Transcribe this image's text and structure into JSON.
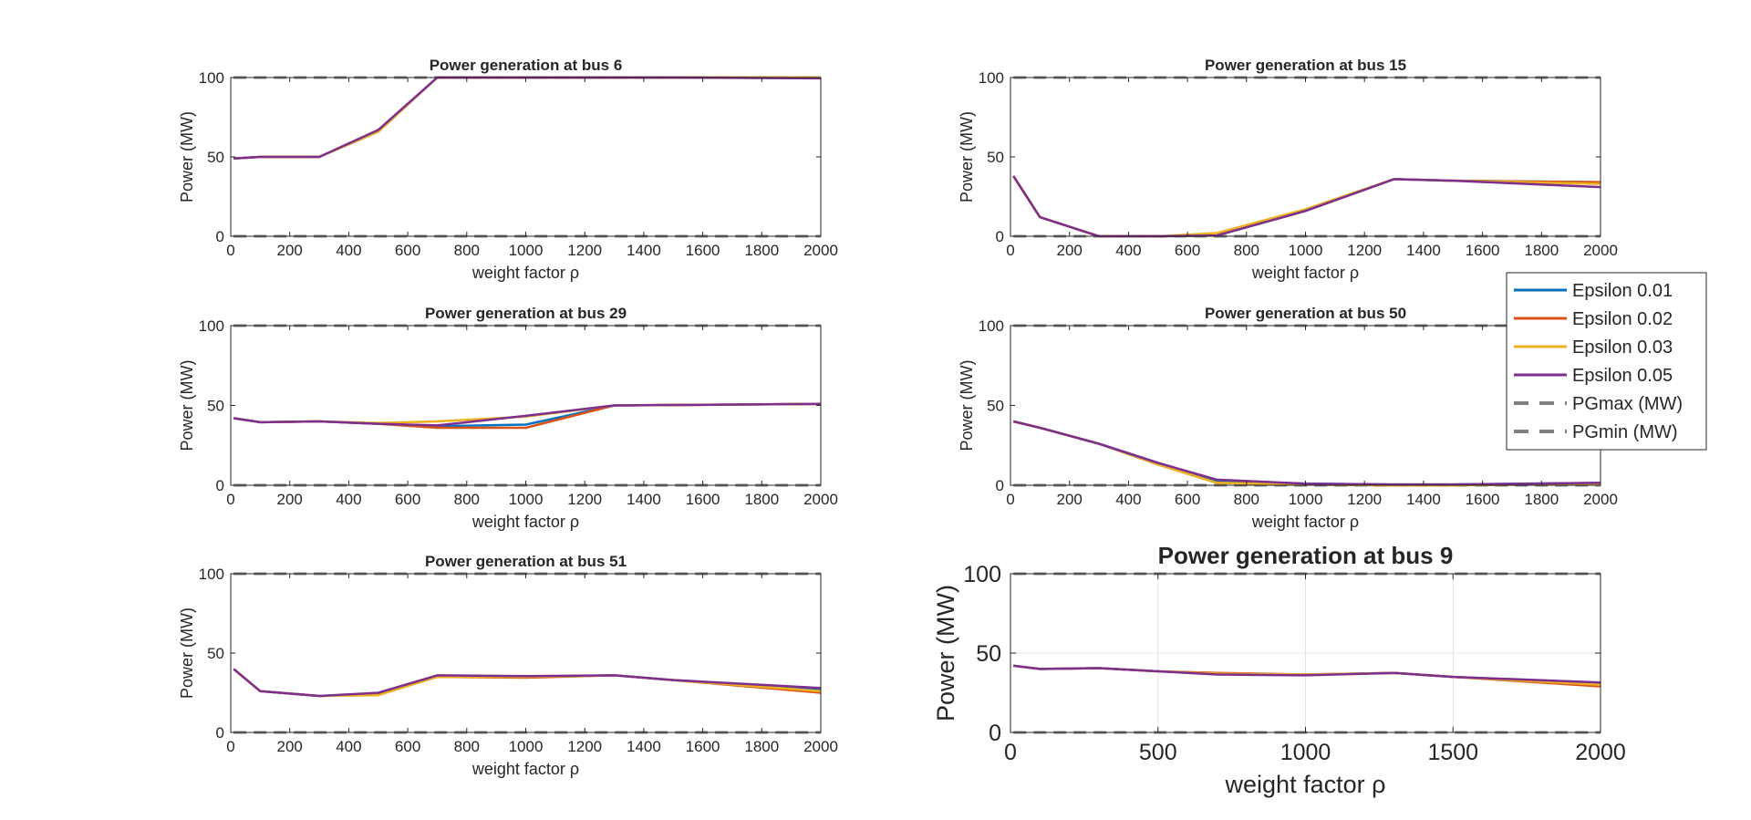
{
  "series_styles": [
    {
      "name": "Epsilon 0.01",
      "color": "#0072BD",
      "dash": "solid"
    },
    {
      "name": "Epsilon 0.02",
      "color": "#D95319",
      "dash": "solid"
    },
    {
      "name": "Epsilon 0.03",
      "color": "#EDB120",
      "dash": "solid"
    },
    {
      "name": "Epsilon 0.05",
      "color": "#7E2F8E",
      "dash": "solid"
    },
    {
      "name": "PGmax (MW)",
      "color": "#808080",
      "dash": "dashed"
    },
    {
      "name": "PGmin (MW)",
      "color": "#808080",
      "dash": "dashed"
    }
  ],
  "legend": {
    "placement": "right-of-top-right-subplot",
    "entries": [
      "Epsilon 0.01",
      "Epsilon 0.02",
      "Epsilon 0.03",
      "Epsilon 0.05",
      "PGmax (MW)",
      "PGmin (MW)"
    ]
  },
  "chart_data": [
    {
      "type": "line",
      "title": "Power generation at bus 6",
      "xlabel": "weight factor ρ",
      "ylabel": "Power (MW)",
      "xlim": [
        0,
        2000
      ],
      "ylim": [
        0,
        100
      ],
      "xticks": [
        0,
        200,
        400,
        600,
        800,
        1000,
        1200,
        1400,
        1600,
        1800,
        2000
      ],
      "yticks": [
        0,
        50,
        100
      ],
      "grid": false,
      "x": [
        10,
        100,
        300,
        500,
        700,
        1000,
        1300,
        1500,
        2000
      ],
      "series": [
        {
          "name": "Epsilon 0.01",
          "values": [
            49,
            50,
            50,
            66,
            100,
            100,
            100,
            100,
            100
          ]
        },
        {
          "name": "Epsilon 0.02",
          "values": [
            49,
            50,
            50,
            66,
            100,
            100,
            100,
            100,
            100
          ]
        },
        {
          "name": "Epsilon 0.03",
          "values": [
            49,
            50,
            50,
            66,
            100,
            100,
            100,
            100,
            100
          ]
        },
        {
          "name": "Epsilon 0.05",
          "values": [
            49,
            50,
            50,
            67,
            100,
            100,
            100,
            100,
            99.5
          ]
        },
        {
          "name": "PGmax (MW)",
          "values": [
            100,
            100,
            100,
            100,
            100,
            100,
            100,
            100,
            100
          ]
        },
        {
          "name": "PGmin (MW)",
          "values": [
            0,
            0,
            0,
            0,
            0,
            0,
            0,
            0,
            0
          ]
        }
      ]
    },
    {
      "type": "line",
      "title": "Power generation at bus 15",
      "xlabel": "weight factor ρ",
      "ylabel": "Power (MW)",
      "xlim": [
        0,
        2000
      ],
      "ylim": [
        0,
        100
      ],
      "xticks": [
        0,
        200,
        400,
        600,
        800,
        1000,
        1200,
        1400,
        1600,
        1800,
        2000
      ],
      "yticks": [
        0,
        50,
        100
      ],
      "grid": false,
      "x": [
        10,
        100,
        300,
        500,
        700,
        1000,
        1300,
        1500,
        2000
      ],
      "series": [
        {
          "name": "Epsilon 0.01",
          "values": [
            38,
            12,
            0,
            0,
            0.5,
            16,
            36,
            35,
            34
          ]
        },
        {
          "name": "Epsilon 0.02",
          "values": [
            38,
            12,
            0,
            0,
            0.5,
            16,
            36,
            35,
            34
          ]
        },
        {
          "name": "Epsilon 0.03",
          "values": [
            38,
            12,
            0,
            0,
            2,
            17,
            36,
            35,
            33
          ]
        },
        {
          "name": "Epsilon 0.05",
          "values": [
            38,
            12,
            0,
            0,
            0.5,
            16,
            36,
            35,
            31
          ]
        },
        {
          "name": "PGmax (MW)",
          "values": [
            100,
            100,
            100,
            100,
            100,
            100,
            100,
            100,
            100
          ]
        },
        {
          "name": "PGmin (MW)",
          "values": [
            0,
            0,
            0,
            0,
            0,
            0,
            0,
            0,
            0
          ]
        }
      ]
    },
    {
      "type": "line",
      "title": "Power generation at bus 29",
      "xlabel": "weight factor ρ",
      "ylabel": "Power (MW)",
      "xlim": [
        0,
        2000
      ],
      "ylim": [
        0,
        100
      ],
      "xticks": [
        0,
        200,
        400,
        600,
        800,
        1000,
        1200,
        1400,
        1600,
        1800,
        2000
      ],
      "yticks": [
        0,
        50,
        100
      ],
      "grid": false,
      "x": [
        10,
        100,
        300,
        500,
        700,
        1000,
        1300,
        1500,
        2000
      ],
      "series": [
        {
          "name": "Epsilon 0.01",
          "values": [
            42,
            39.5,
            40,
            38.5,
            37,
            38,
            50,
            50.3,
            51
          ]
        },
        {
          "name": "Epsilon 0.02",
          "values": [
            42,
            39.5,
            40,
            38.5,
            36,
            36,
            50,
            50.3,
            51
          ]
        },
        {
          "name": "Epsilon 0.03",
          "values": [
            42,
            39.5,
            40,
            39,
            40,
            43,
            50,
            50.3,
            51
          ]
        },
        {
          "name": "Epsilon 0.05",
          "values": [
            42,
            39.5,
            40,
            38.5,
            37.5,
            43.5,
            50,
            50.3,
            51
          ]
        },
        {
          "name": "PGmax (MW)",
          "values": [
            100,
            100,
            100,
            100,
            100,
            100,
            100,
            100,
            100
          ]
        },
        {
          "name": "PGmin (MW)",
          "values": [
            0,
            0,
            0,
            0,
            0,
            0,
            0,
            0,
            0
          ]
        }
      ]
    },
    {
      "type": "line",
      "title": "Power generation at bus 50",
      "xlabel": "weight factor ρ",
      "ylabel": "Power (MW)",
      "xlim": [
        0,
        2000
      ],
      "ylim": [
        0,
        100
      ],
      "xticks": [
        0,
        200,
        400,
        600,
        800,
        1000,
        1200,
        1400,
        1600,
        1800,
        2000
      ],
      "yticks": [
        0,
        50,
        100
      ],
      "grid": false,
      "x": [
        10,
        100,
        300,
        500,
        700,
        1000,
        1300,
        1500,
        2000
      ],
      "series": [
        {
          "name": "Epsilon 0.01",
          "values": [
            40,
            36,
            26,
            14,
            3,
            1,
            0.5,
            0.5,
            1.5
          ]
        },
        {
          "name": "Epsilon 0.02",
          "values": [
            40,
            36,
            26,
            13,
            1.5,
            0.5,
            0,
            0,
            1
          ]
        },
        {
          "name": "Epsilon 0.03",
          "values": [
            40,
            36,
            26,
            13,
            1.5,
            0.5,
            0,
            0,
            1
          ]
        },
        {
          "name": "Epsilon 0.05",
          "values": [
            40,
            36,
            26,
            14,
            3.5,
            1,
            0.5,
            0.5,
            1.5
          ]
        },
        {
          "name": "PGmax (MW)",
          "values": [
            100,
            100,
            100,
            100,
            100,
            100,
            100,
            100,
            100
          ]
        },
        {
          "name": "PGmin (MW)",
          "values": [
            0,
            0,
            0,
            0,
            0,
            0,
            0,
            0,
            0
          ]
        }
      ]
    },
    {
      "type": "line",
      "title": "Power generation at bus 51",
      "xlabel": "weight factor ρ",
      "ylabel": "Power (MW)",
      "xlim": [
        0,
        2000
      ],
      "ylim": [
        0,
        100
      ],
      "xticks": [
        0,
        200,
        400,
        600,
        800,
        1000,
        1200,
        1400,
        1600,
        1800,
        2000
      ],
      "yticks": [
        0,
        50,
        100
      ],
      "grid": false,
      "x": [
        10,
        100,
        300,
        500,
        700,
        1000,
        1300,
        1500,
        2000
      ],
      "series": [
        {
          "name": "Epsilon 0.01",
          "values": [
            40,
            26,
            23,
            24,
            35.5,
            35,
            36,
            33,
            27
          ]
        },
        {
          "name": "Epsilon 0.02",
          "values": [
            40,
            26,
            23,
            24,
            35,
            34.5,
            36,
            33,
            25
          ]
        },
        {
          "name": "Epsilon 0.03",
          "values": [
            40,
            26,
            23,
            23.5,
            35,
            35,
            36,
            33,
            26
          ]
        },
        {
          "name": "Epsilon 0.05",
          "values": [
            40,
            26,
            23,
            25,
            36,
            35.5,
            36,
            33,
            28
          ]
        },
        {
          "name": "PGmax (MW)",
          "values": [
            100,
            100,
            100,
            100,
            100,
            100,
            100,
            100,
            100
          ]
        },
        {
          "name": "PGmin (MW)",
          "values": [
            0,
            0,
            0,
            0,
            0,
            0,
            0,
            0,
            0
          ]
        }
      ]
    },
    {
      "type": "line",
      "title": "Power generation at bus 9",
      "xlabel": "weight factor ρ",
      "ylabel": "Power (MW)",
      "xlim": [
        0,
        2000
      ],
      "ylim": [
        0,
        100
      ],
      "xticks": [
        0,
        500,
        1000,
        1500,
        2000
      ],
      "yticks": [
        0,
        50,
        100
      ],
      "grid": true,
      "x": [
        10,
        100,
        300,
        500,
        700,
        1000,
        1300,
        1500,
        2000
      ],
      "series": [
        {
          "name": "Epsilon 0.01",
          "values": [
            42,
            40,
            40.5,
            38.5,
            37,
            36.5,
            37.5,
            35,
            31
          ]
        },
        {
          "name": "Epsilon 0.02",
          "values": [
            42,
            40,
            40.5,
            38.5,
            37.5,
            36.5,
            37.5,
            35,
            29
          ]
        },
        {
          "name": "Epsilon 0.03",
          "values": [
            42,
            40,
            40.5,
            38.5,
            37,
            36.5,
            37.5,
            35,
            30
          ]
        },
        {
          "name": "Epsilon 0.05",
          "values": [
            42,
            40,
            40.5,
            38.5,
            36.5,
            36,
            37.5,
            35,
            31.5
          ]
        },
        {
          "name": "PGmax (MW)",
          "values": [
            100,
            100,
            100,
            100,
            100,
            100,
            100,
            100,
            100
          ]
        },
        {
          "name": "PGmin (MW)",
          "values": [
            0,
            0,
            0,
            0,
            0,
            0,
            0,
            0,
            0
          ]
        }
      ]
    }
  ]
}
